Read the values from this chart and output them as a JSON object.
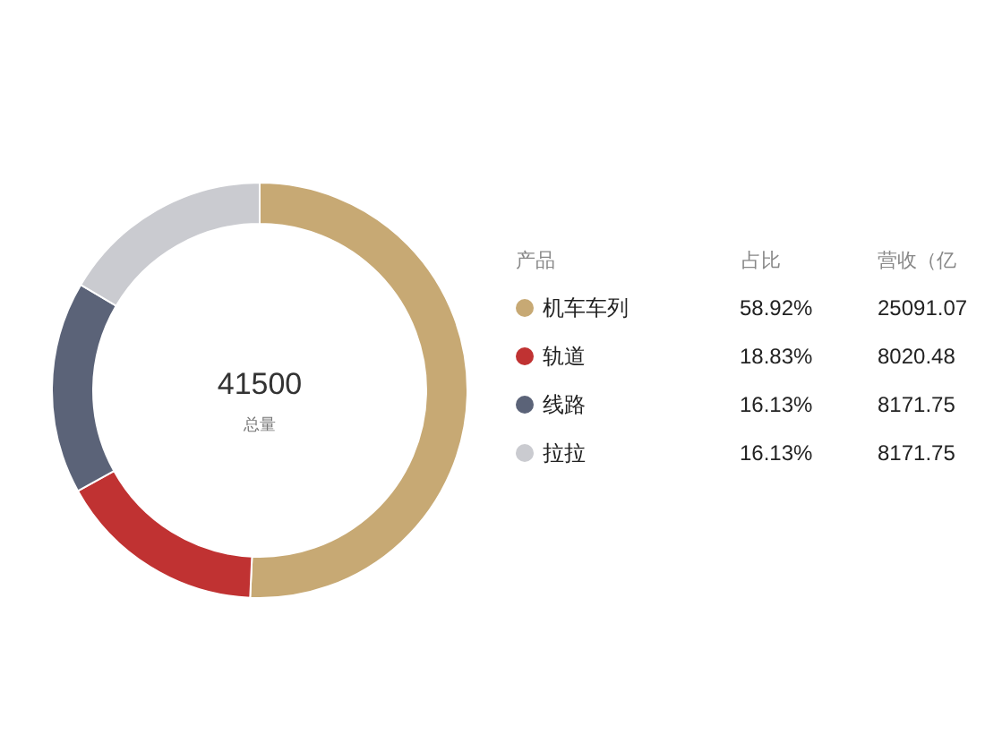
{
  "chart_data": {
    "type": "donut",
    "categories": [
      "机车车列",
      "轨道",
      "线路",
      "拉拉"
    ],
    "values": [
      25091.07,
      8020.48,
      8171.75,
      8171.75
    ],
    "colors": [
      "#c7a974",
      "#c03232",
      "#5b6378",
      "#cacbd0"
    ],
    "data_labels": true,
    "legend": "right",
    "legend_title": "产品",
    "annotations": [
      "41500",
      "总量",
      "占比",
      "营收（亿",
      "58.92%",
      "18.83%",
      "16.13%",
      "16.13%"
    ]
  }
}
